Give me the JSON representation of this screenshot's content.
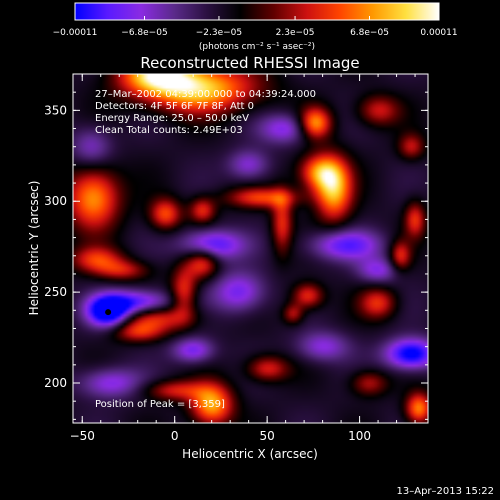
{
  "chart_data": {
    "type": "heatmap",
    "title": "Reconstructed RHESSI Image",
    "xlabel": "Heliocentric X (arcsec)",
    "ylabel": "Heliocentric Y (arcsec)",
    "xlim": [
      -55,
      137
    ],
    "ylim": [
      178,
      370
    ],
    "x_ticks": [
      {
        "value": -50,
        "label": "−50"
      },
      {
        "value": 0,
        "label": "0"
      },
      {
        "value": 50,
        "label": "50"
      },
      {
        "value": 100,
        "label": "100"
      }
    ],
    "y_ticks": [
      {
        "value": 200,
        "label": "200"
      },
      {
        "value": 250,
        "label": "250"
      },
      {
        "value": 300,
        "label": "300"
      },
      {
        "value": 350,
        "label": "350"
      }
    ],
    "colorbar": {
      "range": [
        -0.00011,
        0.00011
      ],
      "ticks": [
        {
          "value": -0.00011,
          "label": "−0.00011"
        },
        {
          "value": -6.8e-05,
          "label": "−6.8e−05"
        },
        {
          "value": -2.3e-05,
          "label": "−2.3e−05"
        },
        {
          "value": 2.3e-05,
          "label": "2.3e−05"
        },
        {
          "value": 6.8e-05,
          "label": "6.8e−05"
        },
        {
          "value": 0.00011,
          "label": "0.00011"
        }
      ],
      "unit_label": "(photons cm⁻² s⁻¹ asec⁻²)",
      "colormap": [
        "#0000ff",
        "#5a1aff",
        "#8a2be2",
        "#5a2a8a",
        "#2a1040",
        "#000000",
        "#600000",
        "#cc1010",
        "#ff4400",
        "#ff9900",
        "#ffe040",
        "#ffffff"
      ]
    },
    "annotations": {
      "line1": "27–Mar–2002 04:39:00.000 to 04:39:24.000",
      "line2": "Detectors: 4F 5F 6F 7F 8F, Att 0",
      "line3": "Energy Range: 25.0 – 50.0 keV",
      "line4": "Clean    Total counts: 2.49E+03",
      "peak": "Position of Peak = [3,359]"
    },
    "peak_marker": {
      "x": -36,
      "y": 239
    },
    "sources": [
      {
        "x": 12,
        "y": 362,
        "amp": 1.0,
        "sx": 22,
        "sy": 9
      },
      {
        "x": -10,
        "y": 370,
        "amp": 0.85,
        "sx": 14,
        "sy": 7
      },
      {
        "x": 76,
        "y": 343,
        "amp": 0.85,
        "sx": 6,
        "sy": 6
      },
      {
        "x": 86,
        "y": 306,
        "amp": 0.9,
        "sx": 7,
        "sy": 12
      },
      {
        "x": 78,
        "y": 316,
        "amp": 0.75,
        "sx": 8,
        "sy": 7
      },
      {
        "x": -44,
        "y": 302,
        "amp": 0.85,
        "sx": 10,
        "sy": 12
      },
      {
        "x": -5,
        "y": 293,
        "amp": 0.65,
        "sx": 6,
        "sy": 6
      },
      {
        "x": 15,
        "y": 295,
        "amp": 0.55,
        "sx": 5,
        "sy": 5
      },
      {
        "x": 48,
        "y": 302,
        "amp": 0.6,
        "sx": 14,
        "sy": 4
      },
      {
        "x": 58,
        "y": 288,
        "amp": 0.55,
        "sx": 4,
        "sy": 12
      },
      {
        "x": 110,
        "y": 350,
        "amp": 0.5,
        "sx": 8,
        "sy": 6
      },
      {
        "x": 130,
        "y": 290,
        "amp": 0.55,
        "sx": 4,
        "sy": 7
      },
      {
        "x": 122,
        "y": 270,
        "amp": 0.55,
        "sx": 4,
        "sy": 6
      },
      {
        "x": 110,
        "y": 244,
        "amp": 0.55,
        "sx": 7,
        "sy": 6
      },
      {
        "x": 72,
        "y": 248,
        "amp": 0.6,
        "sx": 6,
        "sy": 5
      },
      {
        "x": 64,
        "y": 238,
        "amp": 0.45,
        "sx": 4,
        "sy": 4
      },
      {
        "x": -10,
        "y": 236,
        "amp": 0.55,
        "sx": 14,
        "sy": 5
      },
      {
        "x": -20,
        "y": 228,
        "amp": 0.5,
        "sx": 10,
        "sy": 4
      },
      {
        "x": 5,
        "y": 250,
        "amp": 0.6,
        "sx": 5,
        "sy": 10
      },
      {
        "x": 15,
        "y": 266,
        "amp": 0.6,
        "sx": 6,
        "sy": 6
      },
      {
        "x": -42,
        "y": 268,
        "amp": 0.55,
        "sx": 10,
        "sy": 5
      },
      {
        "x": -28,
        "y": 262,
        "amp": 0.45,
        "sx": 10,
        "sy": 4
      },
      {
        "x": 20,
        "y": 188,
        "amp": 0.9,
        "sx": 8,
        "sy": 8
      },
      {
        "x": 0,
        "y": 196,
        "amp": 0.5,
        "sx": 12,
        "sy": 4
      },
      {
        "x": 50,
        "y": 208,
        "amp": 0.55,
        "sx": 8,
        "sy": 5
      },
      {
        "x": 105,
        "y": 200,
        "amp": 0.45,
        "sx": 7,
        "sy": 5
      },
      {
        "x": 132,
        "y": 186,
        "amp": 0.8,
        "sx": 5,
        "sy": 6
      },
      {
        "x": 128,
        "y": 330,
        "amp": 0.45,
        "sx": 5,
        "sy": 5
      },
      {
        "x": -36,
        "y": 239,
        "amp": -1.0,
        "sx": 8,
        "sy": 6
      },
      {
        "x": -20,
        "y": 244,
        "amp": -0.7,
        "sx": 14,
        "sy": 5
      },
      {
        "x": 128,
        "y": 216,
        "amp": -0.9,
        "sx": 10,
        "sy": 6
      },
      {
        "x": 20,
        "y": 276,
        "amp": -0.7,
        "sx": 12,
        "sy": 6
      },
      {
        "x": 92,
        "y": 276,
        "amp": -0.6,
        "sx": 14,
        "sy": 6
      },
      {
        "x": 60,
        "y": 340,
        "amp": -0.5,
        "sx": 10,
        "sy": 6
      },
      {
        "x": -35,
        "y": 200,
        "amp": -0.5,
        "sx": 12,
        "sy": 6
      },
      {
        "x": 10,
        "y": 218,
        "amp": -0.55,
        "sx": 8,
        "sy": 5
      },
      {
        "x": -45,
        "y": 330,
        "amp": -0.4,
        "sx": 8,
        "sy": 8
      },
      {
        "x": 40,
        "y": 320,
        "amp": -0.45,
        "sx": 8,
        "sy": 6
      },
      {
        "x": 35,
        "y": 250,
        "amp": -0.55,
        "sx": 10,
        "sy": 8
      },
      {
        "x": 80,
        "y": 220,
        "amp": -0.45,
        "sx": 10,
        "sy": 6
      },
      {
        "x": 110,
        "y": 262,
        "amp": -0.45,
        "sx": 8,
        "sy": 5
      }
    ]
  },
  "footer": {
    "date": "13–Apr–2013 15:22"
  }
}
